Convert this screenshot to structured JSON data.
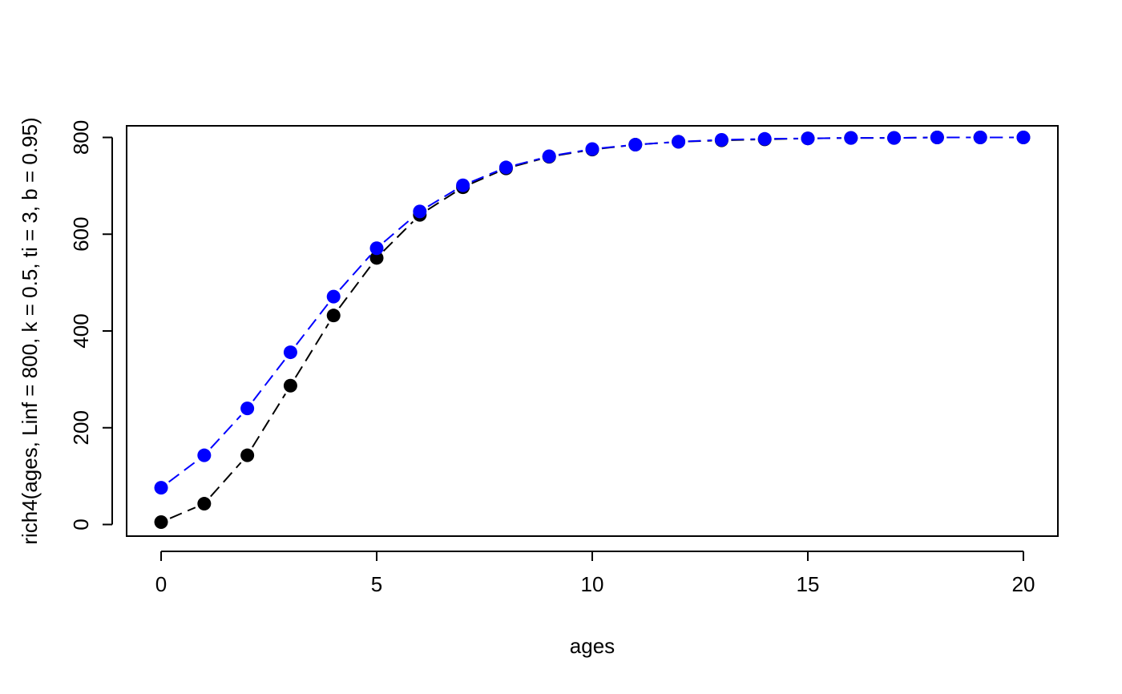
{
  "chart_data": {
    "type": "line",
    "xlabel": "ages",
    "ylabel": "rich4(ages, Linf = 800, k = 0.5, ti = 3, b = 0.95)",
    "xlim": [
      -0.8,
      20.8
    ],
    "ylim": [
      -24,
      824
    ],
    "x_ticks": [
      0,
      5,
      10,
      15,
      20
    ],
    "x_tick_labels": [
      "0",
      "5",
      "10",
      "15",
      "20"
    ],
    "y_ticks": [
      0,
      200,
      400,
      600,
      800
    ],
    "y_tick_labels": [
      "0",
      "200",
      "400",
      "600",
      "800"
    ],
    "grid": false,
    "x": [
      0,
      1,
      2,
      3,
      4,
      5,
      6,
      7,
      8,
      9,
      10,
      11,
      12,
      13,
      14,
      15,
      16,
      17,
      18,
      19,
      20
    ],
    "series": [
      {
        "color": "#000000",
        "line_style": "dashed",
        "marker": "filled-circle",
        "values": [
          5,
          43,
          143,
          287,
          432,
          551,
          640,
          697,
          736,
          760,
          775,
          785,
          791,
          794,
          796,
          798,
          799,
          799,
          800,
          800,
          800
        ]
      },
      {
        "color": "#0000ff",
        "line_style": "dashed",
        "marker": "filled-circle",
        "values": [
          76,
          143,
          240,
          356,
          471,
          571,
          647,
          701,
          738,
          761,
          776,
          785,
          791,
          795,
          797,
          798,
          799,
          799,
          800,
          800,
          800
        ]
      }
    ]
  }
}
